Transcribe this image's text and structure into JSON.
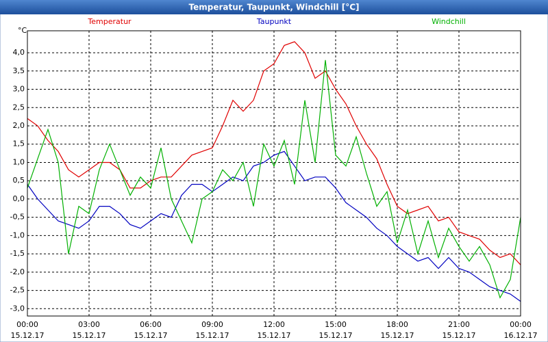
{
  "chart_data": {
    "type": "line",
    "title": "Temperatur, Taupunkt, Windchill [°C]",
    "ylabel": "°C",
    "x": [
      0,
      0.5,
      1,
      1.5,
      2,
      2.5,
      3,
      3.5,
      4,
      4.5,
      5,
      5.5,
      6,
      6.5,
      7,
      7.5,
      8,
      8.5,
      9,
      9.5,
      10,
      10.5,
      11,
      11.5,
      12,
      12.5,
      13,
      13.5,
      14,
      14.5,
      15,
      15.5,
      16,
      16.5,
      17,
      17.5,
      18,
      18.5,
      19,
      19.5,
      20,
      20.5,
      21,
      21.5,
      22,
      22.5,
      23,
      23.5,
      24
    ],
    "series": [
      {
        "name": "Temperatur",
        "color": "#e00000",
        "values": [
          2.2,
          2.0,
          1.6,
          1.3,
          0.8,
          0.6,
          0.8,
          1.0,
          1.0,
          0.8,
          0.3,
          0.3,
          0.5,
          0.6,
          0.6,
          0.9,
          1.2,
          1.3,
          1.4,
          2.0,
          2.7,
          2.4,
          2.7,
          3.5,
          3.7,
          4.2,
          4.3,
          4.0,
          3.3,
          3.5,
          3.0,
          2.6,
          2.0,
          1.5,
          1.1,
          0.4,
          -0.2,
          -0.4,
          -0.3,
          -0.2,
          -0.6,
          -0.5,
          -0.9,
          -1.0,
          -1.1,
          -1.4,
          -1.6,
          -1.5,
          -1.8
        ]
      },
      {
        "name": "Taupunkt",
        "color": "#0000c0",
        "values": [
          0.4,
          0.0,
          -0.3,
          -0.6,
          -0.7,
          -0.8,
          -0.6,
          -0.2,
          -0.2,
          -0.4,
          -0.7,
          -0.8,
          -0.6,
          -0.4,
          -0.5,
          0.1,
          0.4,
          0.4,
          0.2,
          0.4,
          0.6,
          0.5,
          0.9,
          1.0,
          1.2,
          1.3,
          0.9,
          0.5,
          0.6,
          0.6,
          0.3,
          -0.1,
          -0.3,
          -0.5,
          -0.8,
          -1.0,
          -1.3,
          -1.5,
          -1.7,
          -1.6,
          -1.9,
          -1.6,
          -1.9,
          -2.0,
          -2.2,
          -2.4,
          -2.5,
          -2.6,
          -2.8
        ]
      },
      {
        "name": "Windchill",
        "color": "#00b000",
        "values": [
          0.3,
          1.1,
          1.9,
          1.0,
          -1.5,
          -0.2,
          -0.4,
          0.8,
          1.5,
          0.8,
          0.1,
          0.6,
          0.3,
          1.4,
          0.0,
          -0.6,
          -1.2,
          0.0,
          0.2,
          0.8,
          0.5,
          1.0,
          -0.2,
          1.5,
          0.9,
          1.6,
          0.4,
          2.7,
          1.0,
          3.8,
          1.2,
          0.9,
          1.7,
          0.7,
          -0.2,
          0.2,
          -1.2,
          -0.3,
          -1.5,
          -0.6,
          -1.6,
          -0.8,
          -1.3,
          -1.7,
          -1.3,
          -1.8,
          -2.7,
          -2.2,
          -0.5
        ]
      }
    ],
    "xlim": [
      0,
      24
    ],
    "xticks": [
      {
        "value": 0,
        "label": "00:00"
      },
      {
        "value": 3,
        "label": "03:00"
      },
      {
        "value": 6,
        "label": "06:00"
      },
      {
        "value": 9,
        "label": "09:00"
      },
      {
        "value": 12,
        "label": "12:00"
      },
      {
        "value": 15,
        "label": "15:00"
      },
      {
        "value": 18,
        "label": "18:00"
      },
      {
        "value": 21,
        "label": "21:00"
      },
      {
        "value": 24,
        "label": "00:00"
      }
    ],
    "xtick_dates": [
      "15.12.17",
      "15.12.17",
      "15.12.17",
      "15.12.17",
      "15.12.17",
      "15.12.17",
      "15.12.17",
      "15.12.17",
      "16.12.17"
    ],
    "ylim": [
      -3.2,
      4.6
    ],
    "yticks": [
      {
        "value": -3,
        "label": "-3,0"
      },
      {
        "value": -2.5,
        "label": "-2,5"
      },
      {
        "value": -2,
        "label": "-2,0"
      },
      {
        "value": -1.5,
        "label": "-1,5"
      },
      {
        "value": -1,
        "label": "-1,0"
      },
      {
        "value": -0.5,
        "label": "-0,5"
      },
      {
        "value": 0,
        "label": "0,0"
      },
      {
        "value": 0.5,
        "label": "0,5"
      },
      {
        "value": 1,
        "label": "1,0"
      },
      {
        "value": 1.5,
        "label": "1,5"
      },
      {
        "value": 2,
        "label": "2,0"
      },
      {
        "value": 2.5,
        "label": "2,5"
      },
      {
        "value": 3,
        "label": "3,0"
      },
      {
        "value": 3.5,
        "label": "3,5"
      },
      {
        "value": 4,
        "label": "4,0"
      }
    ],
    "grid": true
  }
}
